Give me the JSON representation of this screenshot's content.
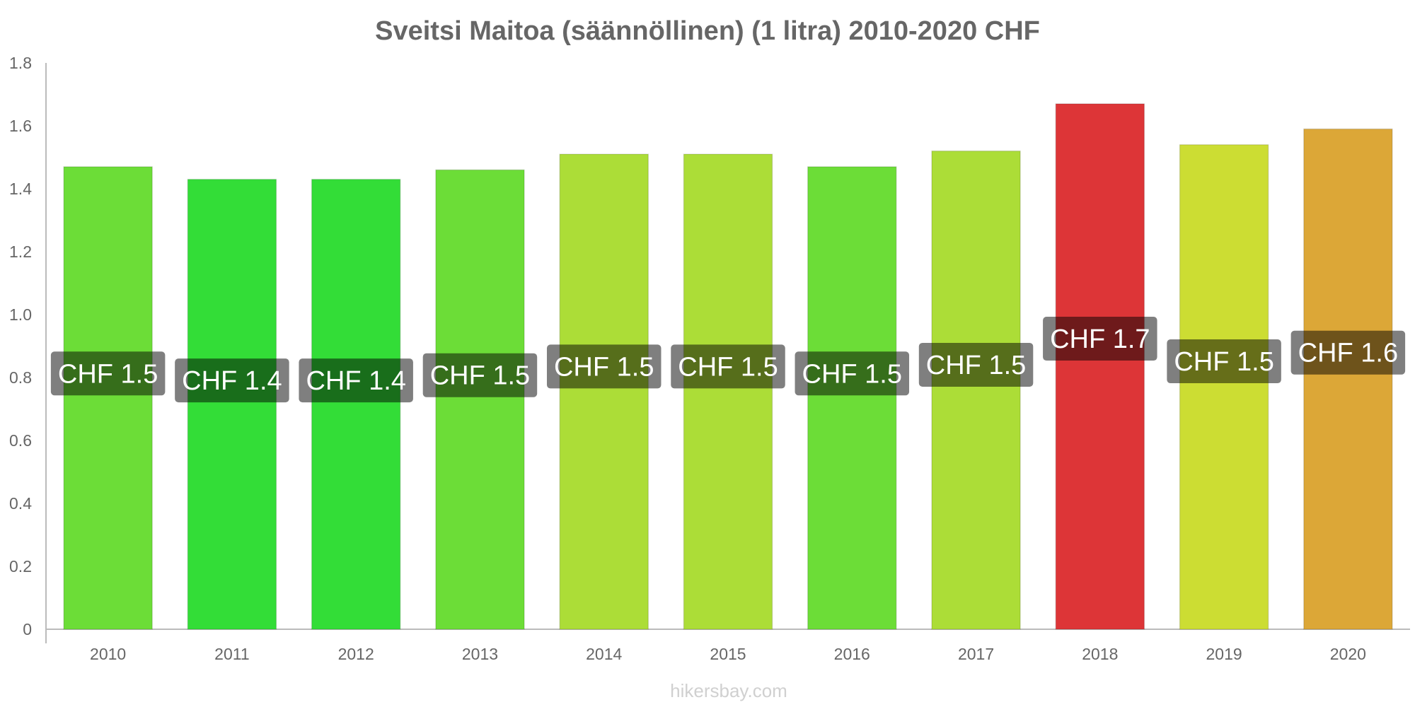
{
  "chart_data": {
    "type": "bar",
    "title": "Sveitsi Maitoa (säännöllinen) (1 litra) 2010-2020 CHF",
    "xlabel": "",
    "ylabel": "",
    "ylim": [
      0,
      1.8
    ],
    "yticks": [
      0,
      0.2,
      0.4,
      0.6,
      0.8,
      1.0,
      1.2,
      1.4,
      1.6,
      1.8
    ],
    "ytick_labels": [
      "0",
      "0.2",
      "0.4",
      "0.6",
      "0.8",
      "1.0",
      "1.2",
      "1.4",
      "1.6",
      "1.8"
    ],
    "categories": [
      "2010",
      "2011",
      "2012",
      "2013",
      "2014",
      "2015",
      "2016",
      "2017",
      "2018",
      "2019",
      "2020"
    ],
    "values": [
      1.47,
      1.43,
      1.43,
      1.46,
      1.51,
      1.51,
      1.47,
      1.52,
      1.67,
      1.54,
      1.59
    ],
    "data_labels": [
      "CHF 1.5",
      "CHF 1.4",
      "CHF 1.4",
      "CHF 1.5",
      "CHF 1.5",
      "CHF 1.5",
      "CHF 1.5",
      "CHF 1.5",
      "CHF 1.7",
      "CHF 1.5",
      "CHF 1.6"
    ],
    "bar_colors": [
      "#6cdd37",
      "#33dd37",
      "#33dd37",
      "#6cdd37",
      "#acdd37",
      "#acdd37",
      "#6cdd37",
      "#acdd37",
      "#dd3537",
      "#ccdd33",
      "#dca737"
    ],
    "grid": false,
    "legend": "none"
  },
  "watermark": "hikersbay.com"
}
